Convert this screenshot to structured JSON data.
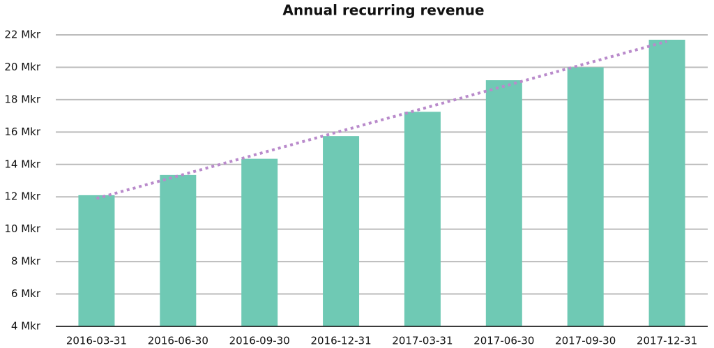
{
  "chart_data": {
    "type": "bar",
    "title": "Annual recurring revenue",
    "categories": [
      "2016-03-31",
      "2016-06-30",
      "2016-09-30",
      "2016-12-31",
      "2017-03-31",
      "2017-06-30",
      "2017-09-30",
      "2017-12-31"
    ],
    "values": [
      12.1,
      13.35,
      14.35,
      15.75,
      17.25,
      19.2,
      20.0,
      21.7
    ],
    "color": "#6fc9b4",
    "trendline": {
      "start": 11.9,
      "end": 21.6,
      "color": "#b98acb"
    },
    "ylim": [
      4,
      22
    ],
    "yticks": [
      {
        "value": 4,
        "label": "4 Mkr"
      },
      {
        "value": 6,
        "label": "6 Mkr"
      },
      {
        "value": 8,
        "label": "8 Mkr"
      },
      {
        "value": 10,
        "label": "10 Mkr"
      },
      {
        "value": 12,
        "label": "12 Mkr"
      },
      {
        "value": 14,
        "label": "14 Mkr"
      },
      {
        "value": 16,
        "label": "16 Mkr"
      },
      {
        "value": 18,
        "label": "18 Mkr"
      },
      {
        "value": 20,
        "label": "20 Mkr"
      },
      {
        "value": 22,
        "label": "22 Mkr"
      }
    ],
    "grid": true
  }
}
